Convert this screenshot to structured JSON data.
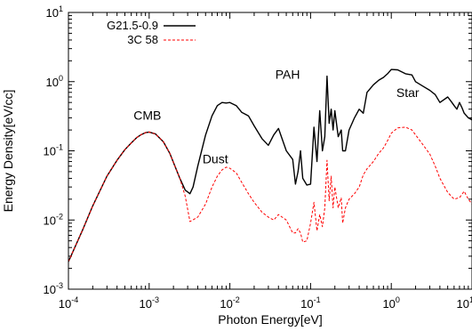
{
  "chart_data": {
    "type": "line",
    "xlabel": "Photon Energy[eV]",
    "ylabel": "Energy Density[eV/cc]",
    "xscale": "log",
    "yscale": "log",
    "xlim": [
      0.0001,
      10
    ],
    "ylim": [
      0.001,
      10
    ],
    "x_tick_labels": [
      {
        "value": 0.0001,
        "base": "10",
        "exp": "-4"
      },
      {
        "value": 0.001,
        "base": "10",
        "exp": "-3"
      },
      {
        "value": 0.01,
        "base": "10",
        "exp": "-2"
      },
      {
        "value": 0.1,
        "base": "10",
        "exp": "-1"
      },
      {
        "value": 1,
        "base": "10",
        "exp": "0"
      },
      {
        "value": 10,
        "base": "10",
        "exp": "1"
      }
    ],
    "y_tick_labels": [
      {
        "value": 0.001,
        "base": "10",
        "exp": "-3"
      },
      {
        "value": 0.01,
        "base": "10",
        "exp": "-2"
      },
      {
        "value": 0.1,
        "base": "10",
        "exp": "-1"
      },
      {
        "value": 1,
        "base": "10",
        "exp": "0"
      },
      {
        "value": 10,
        "base": "10",
        "exp": "1"
      }
    ],
    "grid": false,
    "legend_position": "top-left",
    "annotations": [
      {
        "text": "CMB",
        "x": 0.00095,
        "y": 0.28
      },
      {
        "text": "Dust",
        "x": 0.0066,
        "y": 0.066
      },
      {
        "text": "PAH",
        "x": 0.052,
        "y": 1.1
      },
      {
        "text": "Star",
        "x": 1.6,
        "y": 0.6
      }
    ],
    "series": [
      {
        "name": "G21.5-0.9",
        "color": "#000000",
        "style": "solid",
        "x": [
          0.0001,
          0.00015,
          0.0002,
          0.0003,
          0.0004,
          0.0005,
          0.0006,
          0.0007,
          0.0008,
          0.0009,
          0.001,
          0.0012,
          0.0015,
          0.0018,
          0.002,
          0.0024,
          0.0028,
          0.0032,
          0.0035,
          0.004,
          0.005,
          0.006,
          0.007,
          0.008,
          0.009,
          0.01,
          0.012,
          0.014,
          0.017,
          0.02,
          0.025,
          0.03,
          0.035,
          0.04,
          0.05,
          0.06,
          0.065,
          0.07,
          0.075,
          0.08,
          0.09,
          0.1,
          0.11,
          0.12,
          0.13,
          0.14,
          0.15,
          0.16,
          0.17,
          0.18,
          0.19,
          0.2,
          0.22,
          0.24,
          0.25,
          0.27,
          0.3,
          0.35,
          0.4,
          0.45,
          0.5,
          0.6,
          0.7,
          0.8,
          0.9,
          1.0,
          1.2,
          1.5,
          1.8,
          2.0,
          2.5,
          3.0,
          3.5,
          4.0,
          5.0,
          5.5,
          6.0,
          6.5,
          7.0,
          7.5,
          8.0,
          9.0,
          10.0
        ],
        "y": [
          0.0025,
          0.0072,
          0.016,
          0.043,
          0.073,
          0.104,
          0.13,
          0.155,
          0.172,
          0.183,
          0.187,
          0.175,
          0.135,
          0.092,
          0.068,
          0.04,
          0.027,
          0.024,
          0.03,
          0.06,
          0.17,
          0.32,
          0.45,
          0.5,
          0.49,
          0.5,
          0.45,
          0.36,
          0.32,
          0.23,
          0.15,
          0.12,
          0.17,
          0.21,
          0.1,
          0.075,
          0.033,
          0.05,
          0.1,
          0.04,
          0.032,
          0.033,
          0.22,
          0.07,
          0.38,
          0.1,
          0.16,
          1.2,
          0.25,
          0.4,
          0.2,
          0.38,
          0.16,
          0.2,
          0.1,
          0.1,
          0.2,
          0.3,
          0.4,
          0.35,
          0.7,
          0.9,
          1.05,
          1.15,
          1.3,
          1.5,
          1.48,
          1.3,
          1.25,
          1.0,
          0.85,
          0.75,
          0.65,
          0.5,
          0.6,
          0.52,
          0.45,
          0.4,
          0.5,
          0.42,
          0.35,
          0.3,
          0.28
        ]
      },
      {
        "name": "3C 58",
        "color": "#ff0000",
        "style": "dashed",
        "x": [
          0.0001,
          0.00015,
          0.0002,
          0.0003,
          0.0004,
          0.0005,
          0.0006,
          0.0007,
          0.0008,
          0.0009,
          0.001,
          0.0012,
          0.0015,
          0.0018,
          0.002,
          0.0024,
          0.0028,
          0.0032,
          0.004,
          0.005,
          0.006,
          0.007,
          0.008,
          0.009,
          0.01,
          0.012,
          0.014,
          0.017,
          0.02,
          0.025,
          0.03,
          0.035,
          0.04,
          0.05,
          0.06,
          0.065,
          0.07,
          0.075,
          0.08,
          0.09,
          0.1,
          0.11,
          0.12,
          0.13,
          0.14,
          0.15,
          0.16,
          0.17,
          0.18,
          0.19,
          0.2,
          0.22,
          0.24,
          0.25,
          0.27,
          0.3,
          0.35,
          0.4,
          0.45,
          0.5,
          0.6,
          0.7,
          0.8,
          0.9,
          1.0,
          1.2,
          1.5,
          1.8,
          2.0,
          2.5,
          3.0,
          3.5,
          4.0,
          5.0,
          6.0,
          7.0,
          8.0,
          9.0,
          10.0
        ],
        "y": [
          0.0025,
          0.0072,
          0.016,
          0.043,
          0.073,
          0.104,
          0.13,
          0.155,
          0.172,
          0.183,
          0.187,
          0.175,
          0.135,
          0.092,
          0.068,
          0.04,
          0.022,
          0.0095,
          0.011,
          0.017,
          0.03,
          0.043,
          0.053,
          0.058,
          0.056,
          0.048,
          0.035,
          0.024,
          0.018,
          0.013,
          0.011,
          0.01,
          0.012,
          0.01,
          0.0065,
          0.0065,
          0.0075,
          0.0065,
          0.0048,
          0.005,
          0.009,
          0.018,
          0.007,
          0.012,
          0.008,
          0.015,
          0.073,
          0.019,
          0.043,
          0.015,
          0.03,
          0.015,
          0.021,
          0.009,
          0.015,
          0.02,
          0.024,
          0.03,
          0.045,
          0.055,
          0.07,
          0.092,
          0.11,
          0.14,
          0.18,
          0.215,
          0.22,
          0.2,
          0.17,
          0.12,
          0.09,
          0.06,
          0.04,
          0.025,
          0.02,
          0.021,
          0.026,
          0.02,
          0.017
        ]
      }
    ]
  }
}
